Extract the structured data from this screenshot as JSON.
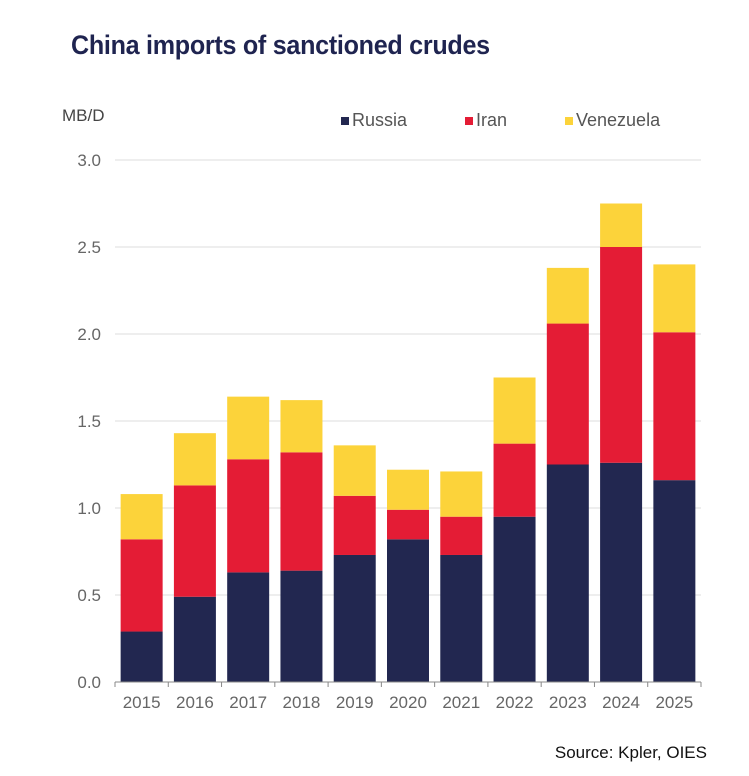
{
  "chart_data": {
    "type": "bar",
    "stacked": true,
    "title": "China imports of sanctioned crudes",
    "ylabel": "MB/D",
    "xlabel": "",
    "ylim": [
      0,
      3.0
    ],
    "yticks": [
      "0.0",
      "0.5",
      "1.0",
      "1.5",
      "2.0",
      "2.5",
      "3.0"
    ],
    "ytick_values": [
      0,
      0.5,
      1.0,
      1.5,
      2.0,
      2.5,
      3.0
    ],
    "grid": true,
    "legend_position": "top-right",
    "categories": [
      "2015",
      "2016",
      "2017",
      "2018",
      "2019",
      "2020",
      "2021",
      "2022",
      "2023",
      "2024",
      "2025"
    ],
    "series": [
      {
        "name": "Russia",
        "color": "#222750",
        "values": [
          0.29,
          0.49,
          0.63,
          0.64,
          0.73,
          0.82,
          0.73,
          0.95,
          1.25,
          1.26,
          1.16
        ]
      },
      {
        "name": "Iran",
        "color": "#e41c35",
        "values": [
          0.53,
          0.64,
          0.65,
          0.68,
          0.34,
          0.17,
          0.22,
          0.42,
          0.81,
          1.24,
          0.85
        ]
      },
      {
        "name": "Venezuela",
        "color": "#fcd33a",
        "values": [
          0.26,
          0.3,
          0.36,
          0.3,
          0.29,
          0.23,
          0.26,
          0.38,
          0.32,
          0.25,
          0.39
        ]
      }
    ],
    "source": "Source: Kpler, OIES"
  }
}
